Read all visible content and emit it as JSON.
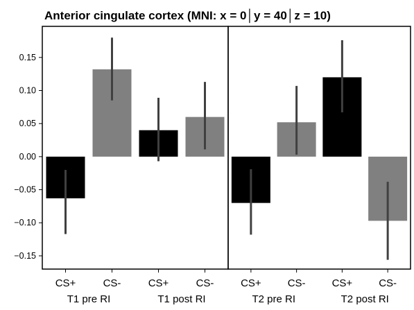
{
  "chart_data": {
    "type": "bar",
    "title": "Anterior cingulate cortex (MNI: x = 0│y = 40│z = 10)",
    "xlabel": "",
    "ylabel": "",
    "ylim": [
      -0.17,
      0.197
    ],
    "yticks": [
      0.15,
      0.1,
      0.05,
      0.0,
      -0.05,
      -0.1,
      -0.15
    ],
    "ytick_labels": [
      "0.15",
      "0.10",
      "0.05",
      "0.00",
      "−0.05",
      "−0.10",
      "−0.15"
    ],
    "grid": false,
    "legend": "none",
    "panels": [
      {
        "groups": [
          {
            "label": "T1 pre RI",
            "bars": [
              {
                "category": "CS+",
                "value": -0.063,
                "err_low": -0.117,
                "err_high": -0.02,
                "color": "#000000"
              },
              {
                "category": "CS-",
                "value": 0.132,
                "err_low": 0.085,
                "err_high": 0.18,
                "color": "#808080"
              }
            ]
          },
          {
            "label": "T1 post RI",
            "bars": [
              {
                "category": "CS+",
                "value": 0.04,
                "err_low": -0.007,
                "err_high": 0.089,
                "color": "#000000"
              },
              {
                "category": "CS-",
                "value": 0.06,
                "err_low": 0.011,
                "err_high": 0.113,
                "color": "#808080"
              }
            ]
          }
        ]
      },
      {
        "groups": [
          {
            "label": "T2 pre RI",
            "bars": [
              {
                "category": "CS+",
                "value": -0.07,
                "err_low": -0.118,
                "err_high": -0.019,
                "color": "#000000"
              },
              {
                "category": "CS-",
                "value": 0.052,
                "err_low": 0.003,
                "err_high": 0.107,
                "color": "#808080"
              }
            ]
          },
          {
            "label": "T2 post RI",
            "bars": [
              {
                "category": "CS+",
                "value": 0.12,
                "err_low": 0.067,
                "err_high": 0.176,
                "color": "#000000"
              },
              {
                "category": "CS-",
                "value": -0.097,
                "err_low": -0.156,
                "err_high": -0.038,
                "color": "#808080"
              }
            ]
          }
        ]
      }
    ],
    "error_bar_color": "#404040"
  }
}
